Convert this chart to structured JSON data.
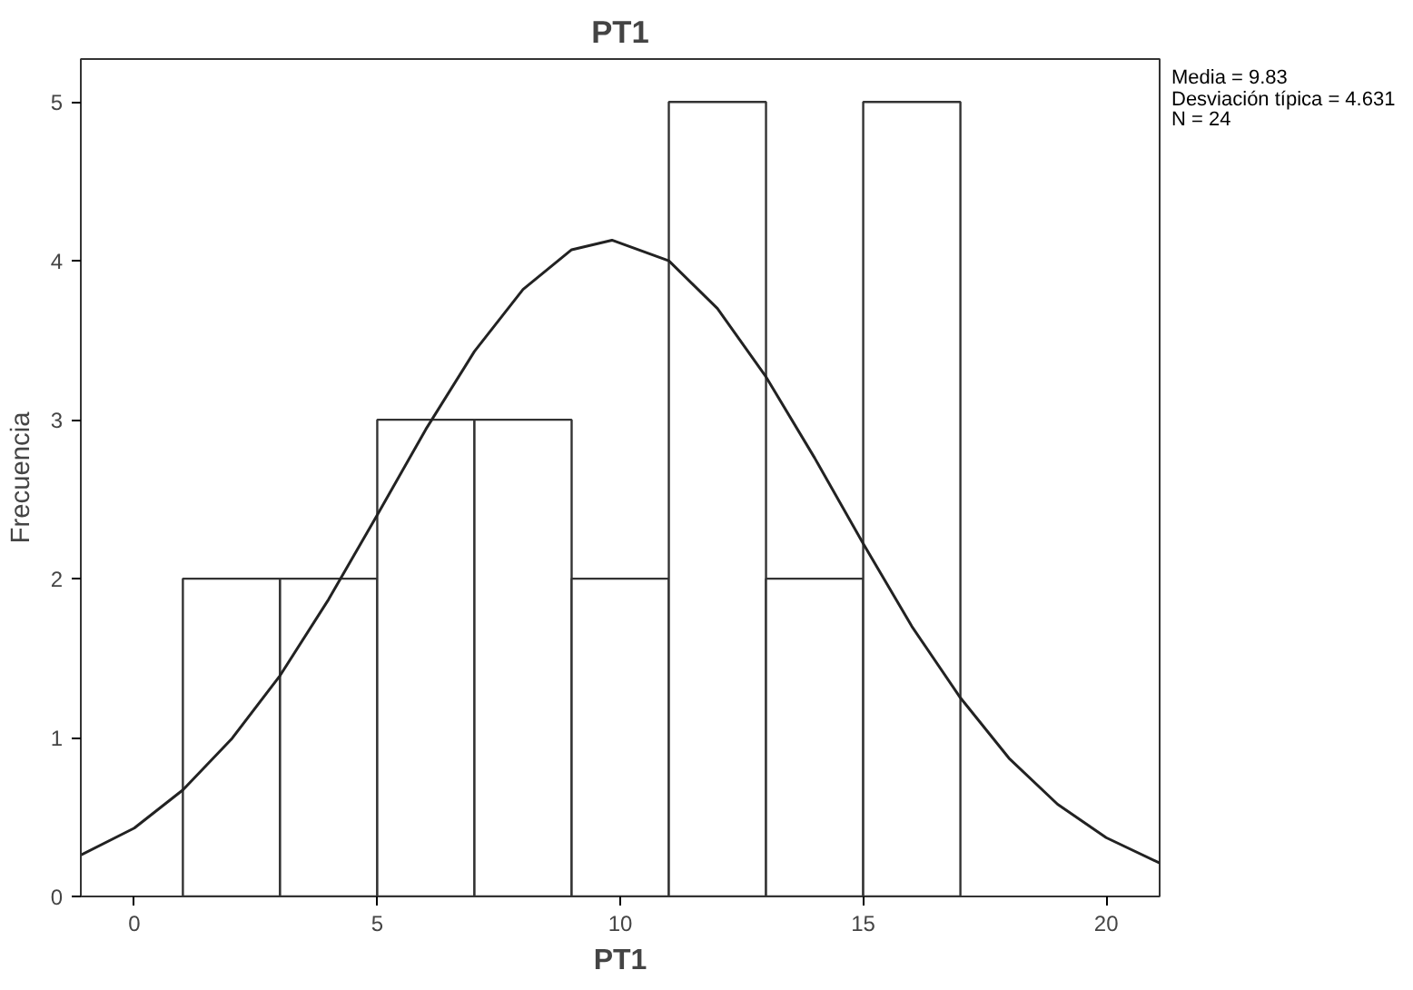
{
  "chart_data": {
    "type": "histogram",
    "title": "PT1",
    "xlabel": "PT1",
    "ylabel": "Frecuencia",
    "xlim": [
      -1.1,
      21.1
    ],
    "ylim": [
      0,
      5.27
    ],
    "xticks": [
      0,
      5,
      10,
      15,
      20
    ],
    "yticks": [
      0,
      1,
      2,
      3,
      4,
      5
    ],
    "grid": false,
    "annotations": [
      "Media = 9.83",
      "Desviación típica = 4.631",
      "N = 24"
    ],
    "series": [
      {
        "color": "#ffffff",
        "bins": [
          1,
          3,
          5,
          7,
          9,
          11,
          13,
          15,
          17
        ],
        "values": [
          2,
          2,
          3,
          3,
          2,
          5,
          2,
          5
        ]
      },
      {
        "type": "line",
        "color": "#222222",
        "x": [
          -1.1,
          0,
          1,
          2,
          3,
          4,
          5,
          6,
          7,
          8,
          9,
          9.83,
          11,
          12,
          13,
          14,
          15,
          16,
          17,
          18,
          19,
          20,
          21.1
        ],
        "values": [
          0.26,
          0.43,
          0.67,
          0.99,
          1.39,
          1.87,
          2.4,
          2.94,
          3.43,
          3.82,
          4.07,
          4.13,
          4.0,
          3.7,
          3.27,
          2.76,
          2.22,
          1.7,
          1.25,
          0.87,
          0.58,
          0.37,
          0.21
        ]
      }
    ]
  }
}
